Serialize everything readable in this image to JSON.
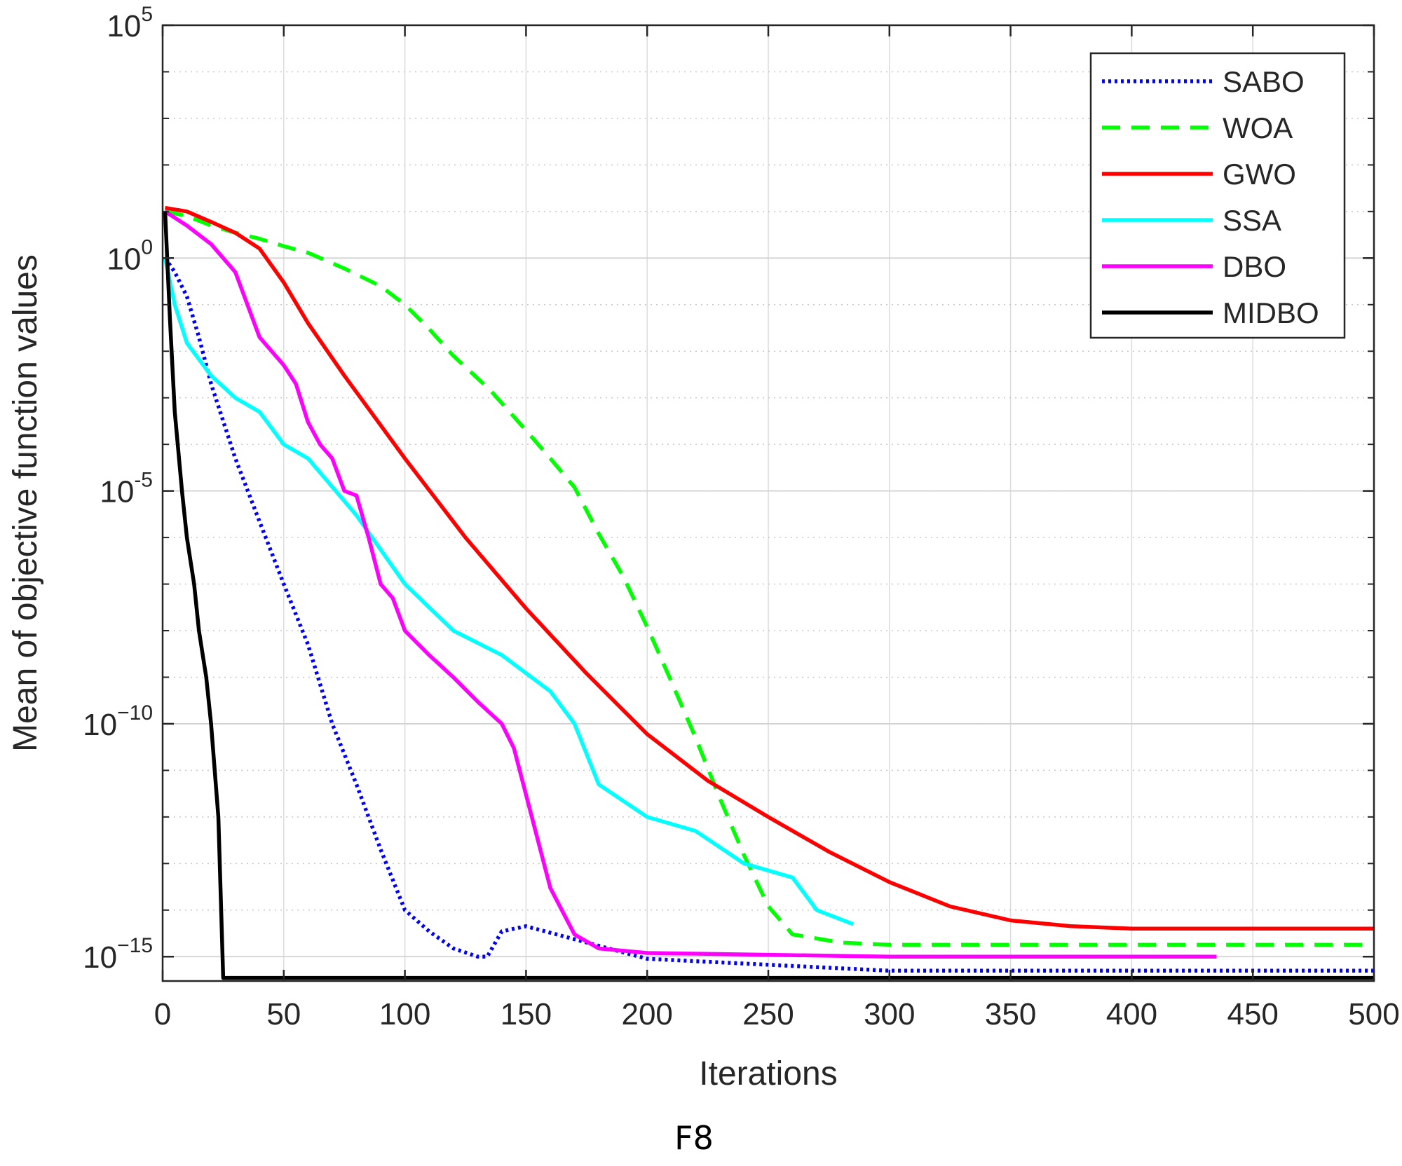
{
  "caption": "F8",
  "chart_data": {
    "type": "line",
    "xlabel": "Iterations",
    "ylabel": "Mean of objective function values",
    "xlim": [
      0,
      500
    ],
    "ylim": [
      3e-16,
      100000.0
    ],
    "yscale": "log",
    "grid": true,
    "legend_position": "top-right",
    "x_ticks": [
      0,
      50,
      100,
      150,
      200,
      250,
      300,
      350,
      400,
      450,
      500
    ],
    "x_tick_labels": [
      "0",
      "50",
      "100",
      "150",
      "200",
      "250",
      "300",
      "350",
      "400",
      "450",
      "500"
    ],
    "y_ticks": [
      1e-15,
      1e-10,
      1e-05,
      1,
      100000.0
    ],
    "y_tick_labels": [
      {
        "base": "10",
        "exp": "−15"
      },
      {
        "base": "10",
        "exp": "−10"
      },
      {
        "base": "10",
        "exp": "-5"
      },
      {
        "base": "10",
        "exp": "0"
      },
      {
        "base": "10",
        "exp": "5"
      }
    ],
    "series": [
      {
        "name": "SABO",
        "color": "#0000ff",
        "style": "dotted",
        "x": [
          1,
          5,
          10,
          15,
          20,
          30,
          40,
          50,
          60,
          70,
          80,
          90,
          100,
          110,
          120,
          130,
          134,
          140,
          150,
          200,
          300,
          400,
          500
        ],
        "y": [
          1,
          0.5,
          0.15,
          0.02,
          0.002,
          5e-05,
          2.2e-06,
          1e-07,
          5e-09,
          1e-10,
          5e-12,
          2e-13,
          1e-14,
          3.5e-15,
          1.5e-15,
          1e-15,
          1e-15,
          3.5e-15,
          4.5e-15,
          9e-16,
          5e-16,
          5e-16,
          5e-16
        ]
      },
      {
        "name": "WOA",
        "color": "#00ff00",
        "style": "dashed",
        "x": [
          1,
          10,
          20,
          30,
          40,
          50,
          60,
          75,
          90,
          100,
          110,
          120,
          135,
          150,
          160,
          170,
          180,
          190,
          200,
          210,
          220,
          230,
          240,
          250,
          260,
          280,
          300,
          400,
          500
        ],
        "y": [
          10,
          8,
          5,
          3.5,
          2.6,
          1.8,
          1.3,
          0.6,
          0.25,
          0.1,
          0.03,
          0.008,
          0.0015,
          0.0002,
          5e-05,
          1.2e-05,
          1.2e-06,
          1.5e-07,
          1.2e-08,
          8e-10,
          5e-11,
          2.5e-12,
          1.5e-13,
          1.2e-14,
          3e-15,
          2e-15,
          1.8e-15,
          1.8e-15,
          1.8e-15
        ]
      },
      {
        "name": "GWO",
        "color": "#ff0000",
        "style": "solid",
        "x": [
          1,
          10,
          20,
          30,
          40,
          50,
          60,
          75,
          100,
          125,
          150,
          175,
          200,
          225,
          250,
          275,
          300,
          325,
          350,
          375,
          400,
          450,
          500
        ],
        "y": [
          12,
          10,
          6,
          3.5,
          1.6,
          0.3,
          0.04,
          0.003,
          5e-05,
          1e-06,
          3e-08,
          1.2e-09,
          6e-11,
          6e-12,
          1e-12,
          1.8e-13,
          4e-14,
          1.2e-14,
          6e-15,
          4.5e-15,
          4e-15,
          4e-15,
          4e-15
        ]
      },
      {
        "name": "SSA",
        "color": "#00ffff",
        "style": "solid",
        "x": [
          1,
          5,
          10,
          20,
          30,
          40,
          50,
          60,
          80,
          100,
          120,
          140,
          160,
          170,
          180,
          200,
          220,
          240,
          260,
          270,
          285
        ],
        "y": [
          1,
          0.1,
          0.015,
          0.003,
          0.001,
          0.0005,
          0.0001,
          5e-05,
          3e-06,
          1e-07,
          1e-08,
          3e-09,
          5e-10,
          1e-10,
          5e-12,
          1e-12,
          5e-13,
          1e-13,
          5e-14,
          1e-14,
          5e-15
        ]
      },
      {
        "name": "DBO",
        "color": "#ff00ff",
        "style": "solid",
        "x": [
          1,
          10,
          20,
          30,
          40,
          50,
          55,
          60,
          65,
          70,
          75,
          80,
          85,
          90,
          95,
          100,
          110,
          120,
          130,
          140,
          145,
          150,
          155,
          160,
          170,
          180,
          200,
          300,
          400,
          435
        ],
        "y": [
          10,
          5,
          2,
          0.5,
          0.02,
          0.005,
          0.002,
          0.0003,
          0.0001,
          5e-05,
          1e-05,
          8e-06,
          1e-06,
          1e-07,
          5e-08,
          1e-08,
          3e-09,
          1e-09,
          3e-10,
          1e-10,
          3e-11,
          3e-12,
          3e-13,
          3e-14,
          3e-15,
          1.5e-15,
          1.2e-15,
          1e-15,
          1e-15,
          1e-15
        ]
      },
      {
        "name": "MIDBO",
        "color": "#000000",
        "style": "solid",
        "x": [
          1,
          3,
          5,
          8,
          10,
          13,
          15,
          18,
          20,
          23,
          25,
          30,
          50,
          100,
          200,
          300,
          400,
          500
        ],
        "y": [
          10,
          0.05,
          0.0005,
          1e-05,
          1e-06,
          1e-07,
          1e-08,
          1e-09,
          1e-10,
          1e-12,
          3.5e-16,
          3.5e-16,
          3.5e-16,
          3.5e-16,
          3.5e-16,
          3.5e-16,
          3.5e-16,
          3.5e-16
        ]
      }
    ]
  }
}
